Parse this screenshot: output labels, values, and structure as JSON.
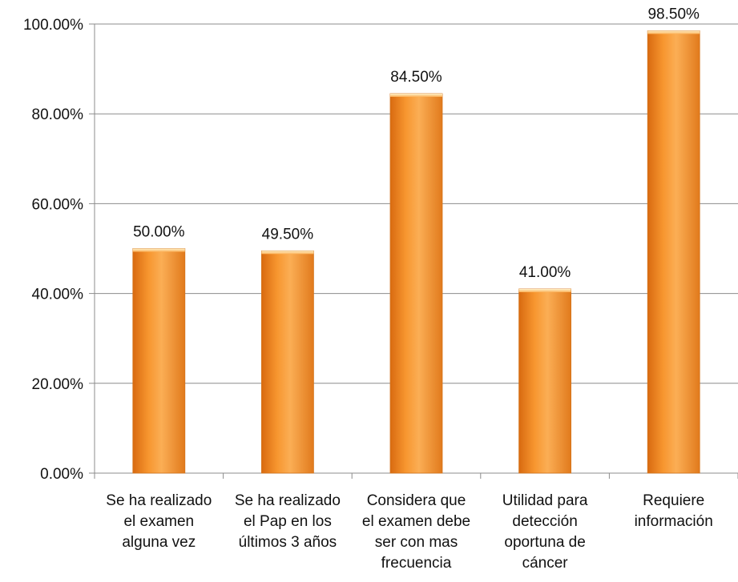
{
  "chart_data": {
    "type": "bar",
    "categories": [
      [
        "Se ha realizado",
        "el examen",
        "alguna vez"
      ],
      [
        "Se ha realizado",
        "el Pap en los",
        "últimos 3 años"
      ],
      [
        "Considera que",
        "el examen debe",
        "ser con mas",
        "frecuencia"
      ],
      [
        "Utilidad para",
        "detección",
        "oportuna de",
        "cáncer"
      ],
      [
        "Requiere",
        "información"
      ]
    ],
    "values": [
      50.0,
      49.5,
      84.5,
      41.0,
      98.5
    ],
    "data_labels": [
      "50.00%",
      "49.50%",
      "84.50%",
      "41.00%",
      "98.50%"
    ],
    "yticks": [
      0,
      20,
      40,
      60,
      80,
      100
    ],
    "ytick_labels": [
      "0.00%",
      "20.00%",
      "40.00%",
      "60.00%",
      "80.00%",
      "100.00%"
    ],
    "ylim": [
      0,
      100
    ],
    "grid": true,
    "bar_color": "#F7962F",
    "title": "",
    "xlabel": "",
    "ylabel": ""
  }
}
